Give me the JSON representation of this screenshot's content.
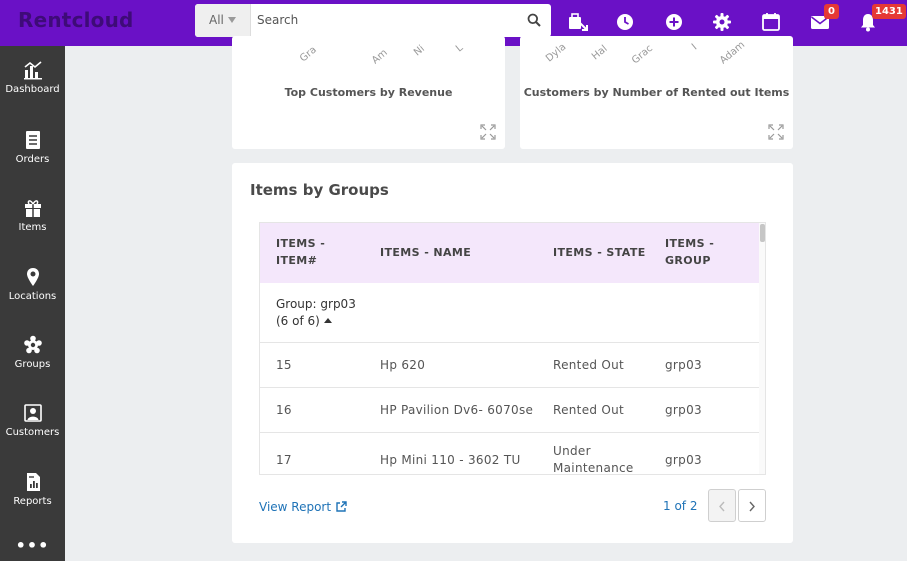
{
  "app": {
    "logo_text": "Rentcloud"
  },
  "search": {
    "filter_label": "All",
    "placeholder": "Search"
  },
  "header": {
    "icons": [
      "checkout-icon",
      "clock-icon",
      "add-icon",
      "gear-icon",
      "calendar-icon",
      "mail-icon",
      "bell-icon"
    ],
    "mail_count": "0",
    "notification_count": "1431"
  },
  "sidebar": {
    "items": [
      {
        "label": "Dashboard"
      },
      {
        "label": "Orders"
      },
      {
        "label": "Items"
      },
      {
        "label": "Locations"
      },
      {
        "label": "Groups"
      },
      {
        "label": "Customers"
      },
      {
        "label": "Reports"
      }
    ],
    "more_label": "•••"
  },
  "charts": {
    "left": {
      "caption": "Top Customers by Revenue",
      "tick_labels": [
        "Gra",
        "Am",
        "Ni",
        "L"
      ]
    },
    "right": {
      "caption": "Customers by Number of Rented out Items",
      "tick_labels": [
        "Dyla",
        "Hal",
        "Grac",
        "I",
        "Adam"
      ]
    }
  },
  "items_by_groups": {
    "title": "Items by Groups",
    "columns": [
      {
        "line1": "ITEMS -",
        "line2": "ITEM#"
      },
      {
        "line1": "ITEMS - NAME",
        "line2": ""
      },
      {
        "line1": "ITEMS - STATE",
        "line2": ""
      },
      {
        "line1": "ITEMS -",
        "line2": "GROUP"
      }
    ],
    "group": {
      "line1": "Group: grp03",
      "line2": "(6 of 6)"
    },
    "rows": [
      {
        "item": "15",
        "name": "Hp 620",
        "state_line1": "Rented Out",
        "state_line2": "",
        "group": "grp03"
      },
      {
        "item": "16",
        "name": "HP Pavilion Dv6- 6070se",
        "state_line1": "Rented Out",
        "state_line2": "",
        "group": "grp03"
      },
      {
        "item": "17",
        "name": "Hp Mini 110 - 3602 TU",
        "state_line1": "Under",
        "state_line2": "Maintenance",
        "group": "grp03"
      }
    ],
    "view_report_label": "View Report",
    "page_info": "1 of 2"
  },
  "colors": {
    "topbar": "#6a11c6",
    "sidebar": "#3a3a3a",
    "table_header": "#f4e7fb",
    "link": "#1f73b7",
    "badge": "#e53935"
  }
}
